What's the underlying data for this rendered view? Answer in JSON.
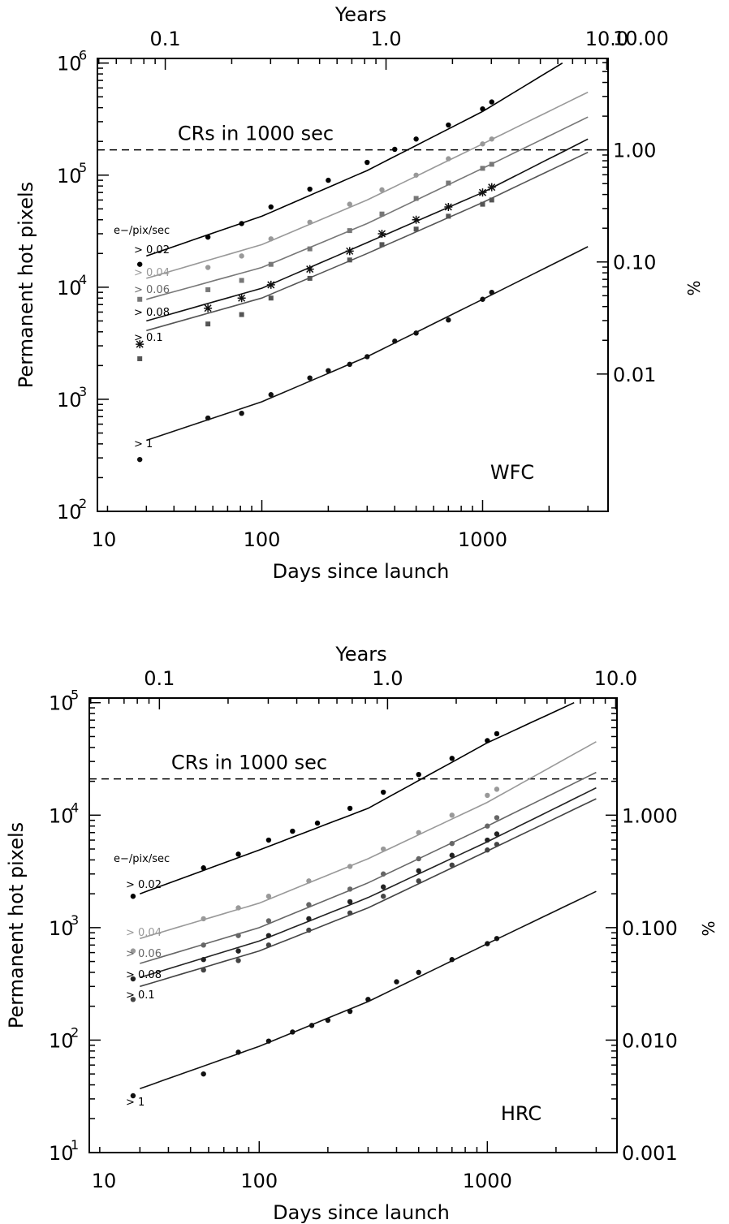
{
  "chart_data": [
    {
      "type": "scatter",
      "panel": "WFC",
      "panel_label": "WFC",
      "xlabel": "Days since launch",
      "x2label": "Years",
      "ylabel": "Permanent hot pixels",
      "y2label": "%",
      "xscale": "log",
      "yscale": "log",
      "xlim": [
        18,
        3700
      ],
      "ylim": [
        100,
        1100000
      ],
      "x_ticks": [
        {
          "v": 10,
          "label": "10"
        },
        {
          "v": 100,
          "label": "100"
        },
        {
          "v": 1000,
          "label": "1000"
        }
      ],
      "top_ticks": [
        {
          "v": 0.1,
          "label": "0.1"
        },
        {
          "v": 1.0,
          "label": "1.0"
        },
        {
          "v": 10.0,
          "label": "10.0"
        }
      ],
      "y_ticks": [
        {
          "v": 100,
          "label": "10",
          "exp": "2"
        },
        {
          "v": 1000,
          "label": "10",
          "exp": "3"
        },
        {
          "v": 10000,
          "label": "10",
          "exp": "4"
        },
        {
          "v": 100000,
          "label": "10",
          "exp": "5"
        },
        {
          "v": 1000000,
          "label": "10",
          "exp": "6"
        }
      ],
      "right_ticks": [
        {
          "v": 1680,
          "label": "0.01"
        },
        {
          "v": 16800,
          "label": "0.10"
        },
        {
          "v": 168000,
          "label": "1.00"
        },
        {
          "v": 1680000,
          "label": "10.00"
        }
      ],
      "ref_line": {
        "label": "CRs in 1000 sec",
        "y": 168000
      },
      "legend_title": "e−/pix/sec",
      "series": [
        {
          "name": "> 0.02",
          "color": "#000000",
          "marker": "circle",
          "x": [
            28,
            57,
            81,
            110,
            165,
            200,
            300,
            400,
            500,
            700,
            1000,
            1100
          ],
          "y": [
            16000,
            28000,
            37000,
            52000,
            75000,
            90000,
            130000,
            170000,
            210000,
            280000,
            390000,
            450000
          ],
          "fit": {
            "x": [
              30,
              100,
              300,
              1000,
              2300
            ],
            "y": [
              19000,
              43000,
              110000,
              370000,
              1000000
            ]
          }
        },
        {
          "name": "> 0.04",
          "color": "#999999",
          "marker": "circle",
          "x": [
            57,
            81,
            110,
            165,
            250,
            350,
            500,
            700,
            1000,
            1100
          ],
          "y": [
            15000,
            19000,
            27000,
            38000,
            55000,
            74000,
            100000,
            140000,
            190000,
            210000
          ],
          "fit": {
            "x": [
              30,
              100,
              300,
              1000,
              3000
            ],
            "y": [
              12000,
              24000,
              60000,
              190000,
              550000
            ]
          }
        },
        {
          "name": "> 0.06",
          "color": "#777777",
          "marker": "square",
          "x": [
            28,
            57,
            81,
            110,
            165,
            250,
            350,
            500,
            700,
            1000,
            1100
          ],
          "y": [
            7800,
            9500,
            11500,
            16000,
            22000,
            32000,
            45000,
            62000,
            85000,
            115000,
            125000
          ],
          "fit": {
            "x": [
              30,
              100,
              300,
              1000,
              3000
            ],
            "y": [
              7800,
              15000,
              37000,
              115000,
              330000
            ]
          }
        },
        {
          "name": "> 0.08",
          "color": "#111111",
          "marker": "star",
          "x": [
            28,
            57,
            81,
            110,
            165,
            250,
            350,
            500,
            700,
            1000,
            1100
          ],
          "y": [
            3100,
            6500,
            8000,
            10500,
            14500,
            21000,
            30000,
            40000,
            52000,
            70000,
            78000
          ],
          "fit": {
            "x": [
              30,
              100,
              300,
              1000,
              3000
            ],
            "y": [
              5000,
              9800,
              25000,
              70000,
              210000
            ]
          }
        },
        {
          "name": "> 0.1",
          "color": "#555555",
          "marker": "square",
          "x": [
            28,
            57,
            81,
            110,
            165,
            250,
            350,
            500,
            700,
            1000,
            1100
          ],
          "y": [
            2300,
            4700,
            5700,
            8000,
            12000,
            17500,
            24000,
            33000,
            43000,
            55000,
            60000
          ],
          "fit": {
            "x": [
              30,
              100,
              300,
              1000,
              3000
            ],
            "y": [
              4100,
              8000,
              20000,
              57000,
              160000
            ]
          }
        },
        {
          "name": "> 1",
          "color": "#111111",
          "marker": "circle",
          "x": [
            28,
            57,
            81,
            110,
            165,
            200,
            250,
            300,
            400,
            500,
            700,
            1000,
            1100
          ],
          "y": [
            290,
            680,
            750,
            1100,
            1550,
            1800,
            2050,
            2400,
            3300,
            3900,
            5100,
            7800,
            9000
          ],
          "fit": {
            "x": [
              30,
              100,
              300,
              1000,
              3000
            ],
            "y": [
              430,
              950,
              2400,
              7800,
              23000
            ]
          }
        }
      ]
    },
    {
      "type": "scatter",
      "panel": "HRC",
      "panel_label": "HRC",
      "xlabel": "Days since launch",
      "x2label": "Years",
      "ylabel": "Permanent hot pixels",
      "y2label": "%",
      "xscale": "log",
      "yscale": "log",
      "xlim": [
        18,
        3700
      ],
      "ylim": [
        10,
        110000
      ],
      "x_ticks": [
        {
          "v": 10,
          "label": "10"
        },
        {
          "v": 100,
          "label": "100"
        },
        {
          "v": 1000,
          "label": "1000"
        }
      ],
      "top_ticks": [
        {
          "v": 0.1,
          "label": "0.1"
        },
        {
          "v": 1.0,
          "label": "1.0"
        },
        {
          "v": 10.0,
          "label": "10.0"
        }
      ],
      "y_ticks": [
        {
          "v": 10,
          "label": "10",
          "exp": "1"
        },
        {
          "v": 100,
          "label": "10",
          "exp": "2"
        },
        {
          "v": 1000,
          "label": "10",
          "exp": "3"
        },
        {
          "v": 10000,
          "label": "10",
          "exp": "4"
        },
        {
          "v": 100000,
          "label": "10",
          "exp": "5"
        }
      ],
      "right_ticks": [
        {
          "v": 10,
          "label": "0.001"
        },
        {
          "v": 100,
          "label": "0.010"
        },
        {
          "v": 1000,
          "label": "0.100"
        },
        {
          "v": 10000,
          "label": "1.000"
        }
      ],
      "ref_line": {
        "label": "CRs in 1000 sec",
        "y": 21000
      },
      "legend_title": "e−/pix/sec",
      "series": [
        {
          "name": "> 0.02",
          "color": "#000000",
          "marker": "circle",
          "x": [
            28,
            57,
            81,
            110,
            140,
            180,
            250,
            350,
            500,
            700,
            1000,
            1100
          ],
          "y": [
            1900,
            3400,
            4500,
            6000,
            7200,
            8500,
            11500,
            16000,
            23000,
            32000,
            46000,
            53000
          ],
          "fit": {
            "x": [
              30,
              100,
              300,
              1000,
              2400
            ],
            "y": [
              2000,
              4900,
              11500,
              44000,
              100000
            ]
          }
        },
        {
          "name": "> 0.04",
          "color": "#999999",
          "marker": "circle",
          "x": [
            28,
            57,
            81,
            110,
            165,
            250,
            350,
            500,
            700,
            1000,
            1100
          ],
          "y": [
            620,
            1200,
            1500,
            1900,
            2600,
            3500,
            5000,
            7000,
            10000,
            15000,
            17000
          ],
          "fit": {
            "x": [
              30,
              100,
              300,
              1000,
              3000
            ],
            "y": [
              800,
              1650,
              4100,
              13000,
              45000
            ]
          }
        },
        {
          "name": "> 0.06",
          "color": "#666666",
          "marker": "circle",
          "x": [
            57,
            81,
            110,
            165,
            250,
            350,
            500,
            700,
            1000,
            1100
          ],
          "y": [
            700,
            850,
            1150,
            1600,
            2200,
            3000,
            4100,
            5600,
            8000,
            9500
          ],
          "fit": {
            "x": [
              30,
              100,
              300,
              1000,
              3000
            ],
            "y": [
              480,
              1000,
              2500,
              8000,
              24000
            ]
          }
        },
        {
          "name": "> 0.08",
          "color": "#222222",
          "marker": "circle",
          "x": [
            28,
            57,
            81,
            110,
            165,
            250,
            350,
            500,
            700,
            1000,
            1100
          ],
          "y": [
            350,
            520,
            620,
            850,
            1200,
            1700,
            2300,
            3200,
            4400,
            6000,
            6800
          ],
          "fit": {
            "x": [
              30,
              100,
              300,
              1000,
              3000
            ],
            "y": [
              360,
              760,
              1850,
              5800,
              17500
            ]
          }
        },
        {
          "name": "> 0.1",
          "color": "#444444",
          "marker": "circle",
          "x": [
            28,
            57,
            81,
            110,
            165,
            250,
            350,
            500,
            700,
            1000,
            1100
          ],
          "y": [
            230,
            420,
            510,
            700,
            950,
            1350,
            1900,
            2600,
            3600,
            4900,
            5500
          ],
          "fit": {
            "x": [
              30,
              100,
              300,
              1000,
              3000
            ],
            "y": [
              300,
              620,
              1500,
              4800,
              14000
            ]
          }
        },
        {
          "name": "> 1",
          "color": "#111111",
          "marker": "circle",
          "x": [
            28,
            57,
            81,
            110,
            140,
            170,
            200,
            250,
            300,
            400,
            500,
            700,
            1000,
            1100
          ],
          "y": [
            32,
            50,
            78,
            98,
            118,
            135,
            150,
            180,
            230,
            330,
            400,
            520,
            720,
            800
          ],
          "fit": {
            "x": [
              30,
              100,
              300,
              1000,
              3000
            ],
            "y": [
              37,
              88,
              220,
              720,
              2100
            ]
          }
        }
      ]
    }
  ]
}
